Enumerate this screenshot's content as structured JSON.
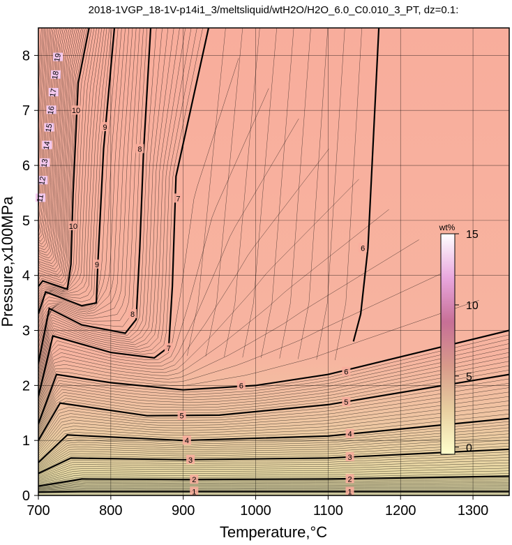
{
  "chart_data": {
    "type": "contour",
    "title": "2018-1VGP_18-1V-p14i1_3/meltsliquid/wtH2O/H2O_6.0_C0.010_3_PT, dz=0.1:",
    "xlabel": "Temperature,°C",
    "ylabel": "Pressure,x100MPa",
    "xlim": [
      700,
      1350
    ],
    "ylim": [
      0,
      8.5
    ],
    "xticks": [
      700,
      800,
      900,
      1000,
      1100,
      1200,
      1300
    ],
    "yticks": [
      0,
      1,
      2,
      3,
      4,
      5,
      6,
      7,
      8
    ],
    "grid": true,
    "contour_interval": 0.1,
    "colorbar": {
      "title": "wt%",
      "range": [
        -0.5,
        15
      ],
      "ticks": [
        0,
        5,
        10,
        15
      ],
      "colors": [
        "#ffffcc",
        "#e8cfa0",
        "#d89a8a",
        "#c76f96",
        "#e9a7de",
        "#ffffff"
      ]
    },
    "contour_lines": [
      {
        "level": 1,
        "points": [
          [
            700,
            0.06
          ],
          [
            760,
            0.07
          ],
          [
            900,
            0.07
          ],
          [
            1100,
            0.07
          ],
          [
            1350,
            0.07
          ]
        ],
        "labels": [
          [
            915,
            0.07
          ],
          [
            1130,
            0.07
          ]
        ]
      },
      {
        "level": 2,
        "points": [
          [
            700,
            0.17
          ],
          [
            760,
            0.3
          ],
          [
            900,
            0.29
          ],
          [
            1100,
            0.3
          ],
          [
            1350,
            0.35
          ]
        ],
        "labels": [
          [
            915,
            0.29
          ],
          [
            1130,
            0.3
          ]
        ]
      },
      {
        "level": 3,
        "points": [
          [
            700,
            0.4
          ],
          [
            745,
            0.68
          ],
          [
            900,
            0.65
          ],
          [
            1100,
            0.68
          ],
          [
            1350,
            0.84
          ]
        ],
        "labels": [
          [
            910,
            0.65
          ],
          [
            1130,
            0.7
          ]
        ]
      },
      {
        "level": 4,
        "points": [
          [
            700,
            0.6
          ],
          [
            740,
            1.1
          ],
          [
            900,
            1.0
          ],
          [
            1100,
            1.08
          ],
          [
            1350,
            1.4
          ]
        ],
        "labels": [
          [
            905,
            1.0
          ],
          [
            1130,
            1.12
          ]
        ]
      },
      {
        "level": 5,
        "points": [
          [
            700,
            1.0
          ],
          [
            730,
            1.68
          ],
          [
            850,
            1.45
          ],
          [
            950,
            1.46
          ],
          [
            1100,
            1.65
          ],
          [
            1350,
            2.2
          ]
        ],
        "labels": [
          [
            898,
            1.45
          ],
          [
            1125,
            1.7
          ]
        ]
      },
      {
        "level": 6,
        "points": [
          [
            700,
            1.3
          ],
          [
            725,
            2.2
          ],
          [
            800,
            2.05
          ],
          [
            900,
            1.92
          ],
          [
            1000,
            2.0
          ],
          [
            1100,
            2.2
          ],
          [
            1350,
            3.0
          ]
        ],
        "labels": [
          [
            980,
            2.0
          ],
          [
            1125,
            2.25
          ]
        ]
      },
      {
        "level": 6,
        "points": [
          [
            1135,
            2.8
          ],
          [
            1145,
            3.3
          ],
          [
            1155,
            4.5
          ],
          [
            1170,
            8.5
          ]
        ],
        "labels": [
          [
            1148,
            4.5
          ]
        ]
      },
      {
        "level": 7,
        "points": [
          [
            700,
            1.8
          ],
          [
            720,
            2.9
          ],
          [
            800,
            2.6
          ],
          [
            860,
            2.5
          ],
          [
            880,
            2.7
          ],
          [
            885,
            3.8
          ],
          [
            890,
            5.8
          ],
          [
            935,
            8.5
          ]
        ],
        "labels": [
          [
            880,
            2.68
          ],
          [
            893,
            5.4
          ]
        ]
      },
      {
        "level": 8,
        "points": [
          [
            700,
            2.4
          ],
          [
            715,
            3.4
          ],
          [
            760,
            3.1
          ],
          [
            820,
            2.95
          ],
          [
            835,
            3.2
          ],
          [
            840,
            4.5
          ],
          [
            845,
            6.2
          ],
          [
            855,
            8.5
          ]
        ],
        "labels": [
          [
            830,
            3.3
          ],
          [
            840,
            6.3
          ]
        ]
      },
      {
        "level": 9,
        "points": [
          [
            700,
            3.3
          ],
          [
            710,
            3.7
          ],
          [
            760,
            3.45
          ],
          [
            780,
            3.5
          ],
          [
            782,
            4.2
          ],
          [
            790,
            6.3
          ],
          [
            805,
            8.5
          ]
        ],
        "labels": [
          [
            781,
            4.2
          ],
          [
            792,
            6.7
          ]
        ]
      },
      {
        "level": 10,
        "points": [
          [
            700,
            3.8
          ],
          [
            706,
            3.9
          ],
          [
            740,
            3.75
          ],
          [
            745,
            4.2
          ],
          [
            748,
            5.5
          ],
          [
            755,
            7.5
          ],
          [
            770,
            8.5
          ]
        ],
        "labels": [
          [
            748,
            4.9
          ],
          [
            752,
            7.0
          ]
        ]
      }
    ],
    "clustered_labels": [
      "11",
      "12",
      "13",
      "14",
      "15",
      "16",
      "17",
      "18",
      "19"
    ]
  }
}
